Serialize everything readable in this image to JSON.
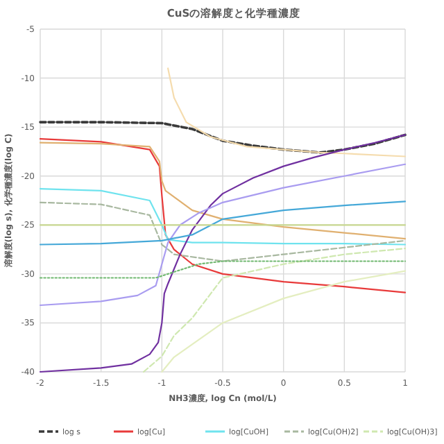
{
  "chart_data": {
    "type": "line",
    "title": "CuSの溶解度と化学種濃度",
    "xlabel": "NH3濃度, log Cn (mol/L)",
    "ylabel": "溶解度(log s), 化学種濃度(log C)",
    "xlim": [
      -2,
      1
    ],
    "ylim": [
      -40,
      -5
    ],
    "xticks": [
      -2,
      -1.5,
      -1,
      -0.5,
      0,
      0.5,
      1
    ],
    "yticks": [
      -40,
      -35,
      -30,
      -25,
      -20,
      -15,
      -10,
      -5
    ],
    "grid": true,
    "legend": "bottom",
    "marker": "none",
    "series": [
      {
        "name": "log s",
        "color": "#3a3a3a",
        "line_style": "dashed",
        "x": [
          -2,
          -1.5,
          -1,
          -0.75,
          -0.5,
          -0.25,
          0,
          0.3,
          0.5,
          0.75,
          1
        ],
        "values": [
          -14.5,
          -14.5,
          -14.6,
          -15.2,
          -16.4,
          -16.9,
          -17.3,
          -17.6,
          -17.3,
          -16.7,
          -15.8
        ]
      },
      {
        "name": "log[Cu]",
        "color": "#e83a3a",
        "line_style": "solid",
        "x": [
          -2,
          -1.5,
          -1.1,
          -1.02,
          -1,
          -0.97,
          -0.9,
          -0.75,
          -0.5,
          0,
          0.5,
          1
        ],
        "values": [
          -16.2,
          -16.5,
          -17.3,
          -19,
          -22,
          -26,
          -27.5,
          -29,
          -30,
          -30.8,
          -31.3,
          -31.9
        ]
      },
      {
        "name": "log[CuOH]",
        "color": "#6fe3ee",
        "line_style": "solid",
        "x": [
          -2,
          -1.5,
          -1.1,
          -1,
          -0.95,
          -0.75,
          -0.5,
          0,
          0.5,
          1
        ],
        "values": [
          -21.3,
          -21.5,
          -22.5,
          -25,
          -26.5,
          -26.8,
          -26.8,
          -26.9,
          -26.9,
          -27
        ]
      },
      {
        "name": "log[Cu(OH)2]",
        "color": "#a8b8a0",
        "line_style": "dashed",
        "x": [
          -2,
          -1.5,
          -1.1,
          -1,
          -0.9,
          -0.5,
          0,
          0.5,
          1
        ],
        "values": [
          -22.7,
          -22.9,
          -24,
          -27,
          -28,
          -28.7,
          -28,
          -27.3,
          -26.6
        ]
      },
      {
        "name": "log[Cu(OH)3]",
        "color": "#cfe8b0",
        "line_style": "dashed",
        "x": [
          -1.15,
          -1,
          -0.9,
          -0.75,
          -0.5,
          0,
          0.5,
          1
        ],
        "values": [
          -40,
          -38.4,
          -36.3,
          -34.5,
          -30.4,
          -29,
          -28,
          -27.4
        ]
      },
      {
        "color": "#e0b070",
        "line_style": "solid",
        "x": [
          -2,
          -1.5,
          -1.1,
          -1.02,
          -1,
          -0.97,
          -0.75,
          -0.5,
          0,
          0.5,
          1
        ],
        "values": [
          -16.6,
          -16.7,
          -17,
          -18.5,
          -20.5,
          -21.5,
          -23.5,
          -24.4,
          -25.2,
          -25.8,
          -26.4
        ]
      },
      {
        "color": "#f5dcae",
        "line_style": "solid",
        "x": [
          -0.95,
          -0.9,
          -0.8,
          -0.6,
          -0.3,
          0,
          0.3,
          0.5,
          1
        ],
        "values": [
          -9,
          -12,
          -14.5,
          -16,
          -17,
          -17.3,
          -17.6,
          -17.7,
          -18
        ]
      },
      {
        "color": "#7030a0",
        "line_style": "solid",
        "x": [
          -2,
          -1.5,
          -1.25,
          -1.1,
          -1.03,
          -1,
          -0.98,
          -0.95,
          -0.85,
          -0.75,
          -0.6,
          -0.5,
          -0.25,
          0,
          0.25,
          0.5,
          0.75,
          1
        ],
        "values": [
          -40,
          -39.6,
          -39.2,
          -38.2,
          -37,
          -35,
          -32,
          -31,
          -28,
          -25.5,
          -23,
          -21.8,
          -20.2,
          -19,
          -18.1,
          -17.3,
          -16.6,
          -15.8
        ]
      },
      {
        "color": "#a99cf0",
        "line_style": "solid",
        "x": [
          -2,
          -1.5,
          -1.2,
          -1.05,
          -1,
          -0.95,
          -0.85,
          -0.7,
          -0.5,
          0,
          0.5,
          1
        ],
        "values": [
          -33.2,
          -32.8,
          -32.2,
          -31.2,
          -29,
          -26.8,
          -25,
          -23.8,
          -22.7,
          -21.2,
          -20,
          -18.8
        ]
      },
      {
        "color": "#45a8d8",
        "line_style": "solid",
        "x": [
          -2,
          -1.5,
          -1,
          -0.75,
          -0.5,
          0,
          0.5,
          1
        ],
        "values": [
          -27,
          -26.9,
          -26.6,
          -26,
          -24.4,
          -23.5,
          -23,
          -22.6
        ]
      },
      {
        "color": "#c8d890",
        "line_style": "solid",
        "x": [
          -2,
          1
        ],
        "values": [
          -25,
          -25
        ]
      },
      {
        "color": "#70b870",
        "line_style": "dotted",
        "x": [
          -2,
          -1.05,
          -0.95,
          -0.7,
          -0.5,
          1
        ],
        "values": [
          -30.4,
          -30.4,
          -30,
          -29,
          -28.7,
          -28.7
        ]
      },
      {
        "color": "#e4eec0",
        "line_style": "solid",
        "x": [
          -1,
          -0.9,
          -0.5,
          0,
          0.5,
          1
        ],
        "values": [
          -40,
          -38.5,
          -35,
          -32.5,
          -30.8,
          -29.7
        ]
      }
    ]
  }
}
